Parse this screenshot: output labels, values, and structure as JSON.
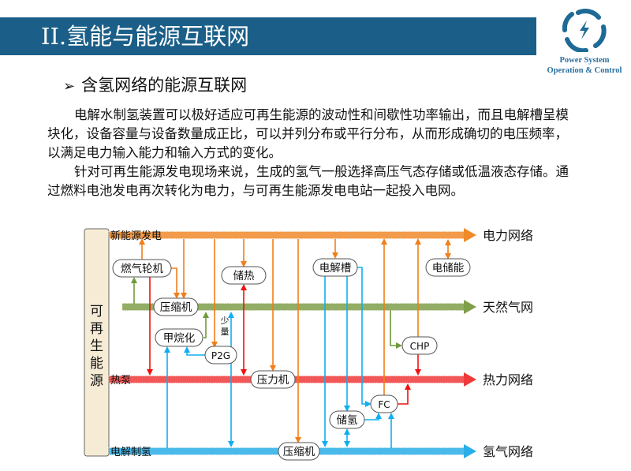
{
  "header": {
    "title": "II.氢能与能源互联网",
    "logo_lines": [
      "Power System",
      "Operation & Control"
    ]
  },
  "section": {
    "bullet": "含氢网络的能源互联网"
  },
  "paragraphs": [
    "电解水制氢装置可以极好适应可再生能源的波动性和间歇性功率输出，而且电解槽呈模块化，设备容量与设备数量成正比，可以并列分布或平行分布，从而形成确切的电压频率，以满足电力输入能力和输入方式的变化。",
    "针对可再生能源发电现场来说，生成的氢气一般选择高压气态存储或低温液态存储。通过燃料电池发电再次转化为电力，与可再生能源发电电站一起投入电网。"
  ],
  "diagram": {
    "source": "可再生能源",
    "buses": [
      {
        "id": "power",
        "start_label": "新能源发电",
        "end_label": "电力网络",
        "color": "#f08a2a"
      },
      {
        "id": "gas",
        "start_label": "",
        "end_label": "天然气网",
        "color": "#7f9f4a"
      },
      {
        "id": "heat",
        "start_label": "热泵",
        "end_label": "热力网络",
        "color": "#f03a3a"
      },
      {
        "id": "h2",
        "start_label": "电解制氢",
        "end_label": "氢气网络",
        "color": "#2aaee8"
      }
    ],
    "nodes": {
      "gas_turbine": "燃气轮机",
      "heat_storage": "储热",
      "electrolyzer": "电解槽",
      "power_storage": "电储能",
      "compressor1": "压缩机",
      "methanation": "甲烷化",
      "p2g": "P2G",
      "pressure_machine": "压力机",
      "chp": "CHP",
      "fc": "FC",
      "h2_storage": "储氢",
      "compressor2": "压缩机"
    },
    "note_small_amount": "少量"
  }
}
